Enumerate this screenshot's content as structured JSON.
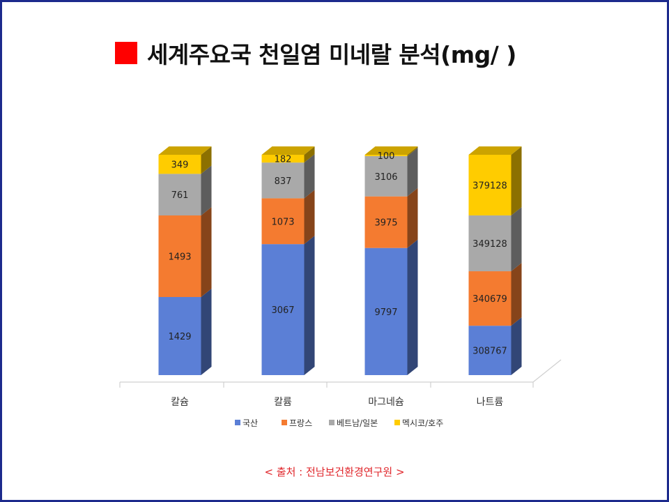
{
  "header": {
    "title": "세계주요국 천일염 미네랄 분석(mg/ )",
    "marker_color": "#ff0000"
  },
  "source_note": "< 출처 : 전남보건환경연구원 >",
  "chart_data": {
    "type": "bar",
    "stacked": true,
    "three_d": true,
    "title": "세계주요국 천일염 미네랄 분석(mg/ )",
    "categories": [
      "칼슘",
      "칼륨",
      "마그네슘",
      "나트륨"
    ],
    "series": [
      {
        "name": "국산",
        "color": "#5b7fd6",
        "values": [
          1429,
          3067,
          9797,
          308767
        ]
      },
      {
        "name": "프랑스",
        "color": "#f47b30",
        "values": [
          1493,
          1073,
          3975,
          340679
        ]
      },
      {
        "name": "베트남/일본",
        "color": "#a9a9a9",
        "values": [
          761,
          837,
          3106,
          349128
        ]
      },
      {
        "name": "멕시코/호주",
        "color": "#ffcc00",
        "values": [
          349,
          182,
          100,
          379128
        ]
      }
    ],
    "scale": "each bar normalized to 100%",
    "legend": "bottom",
    "grid": false
  }
}
